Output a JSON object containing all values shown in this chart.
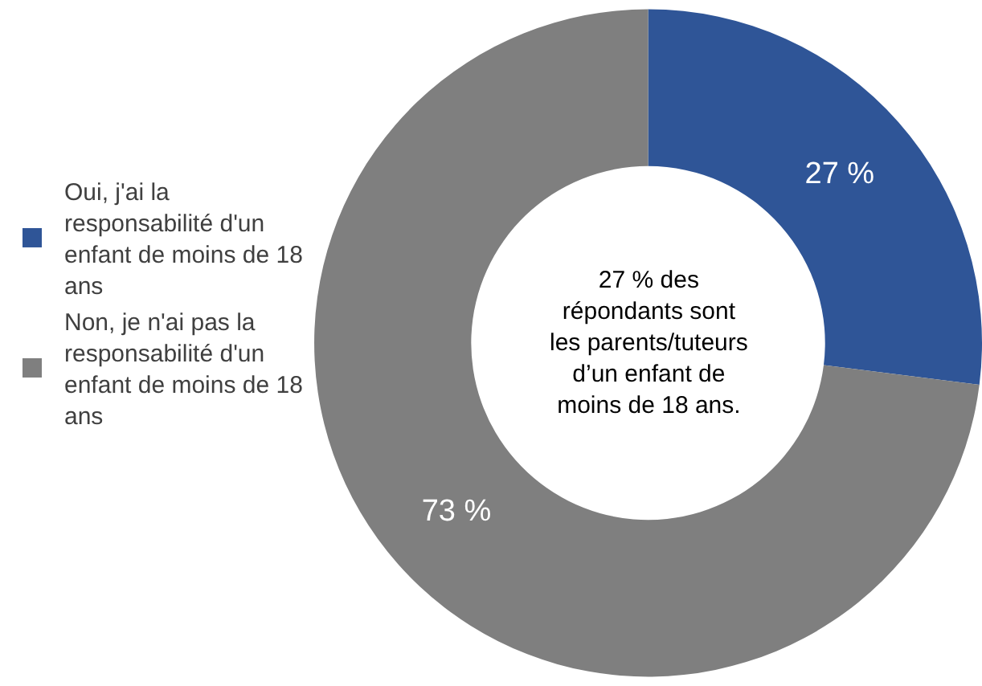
{
  "chart_data": {
    "type": "donut",
    "categories": [
      "Oui, j'ai la responsabilité d'un enfant de moins de 18 ans",
      "Non, je n'ai pas la responsabilité d'un enfant de moins de 18 ans"
    ],
    "values": [
      27,
      73
    ],
    "colors": [
      "#2f5597",
      "#7f7f7f"
    ],
    "value_labels": [
      "27 %",
      "73 %"
    ],
    "legend": "left",
    "annotations": [
      "27 % des\nrépondants sont\nles parents/tuteurs\nd’un enfant de\nmoins de 18 ans."
    ]
  }
}
